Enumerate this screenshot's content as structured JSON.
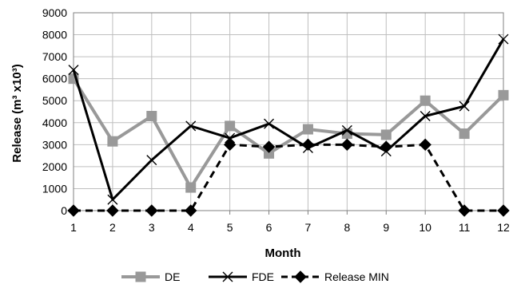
{
  "chart_data": {
    "type": "line",
    "title": "",
    "xlabel": "Month",
    "ylabel": "Release (m³ x10³)",
    "x": [
      1,
      2,
      3,
      4,
      5,
      6,
      7,
      8,
      9,
      10,
      11,
      12
    ],
    "ylim": [
      0,
      9000
    ],
    "yticks": [
      0,
      1000,
      2000,
      3000,
      4000,
      5000,
      6000,
      7000,
      8000,
      9000
    ],
    "grid": true,
    "legend_position": "bottom",
    "series": [
      {
        "name": "DE",
        "color": "#999999",
        "marker": "square",
        "dash": "solid",
        "values": [
          6000,
          3150,
          4300,
          1050,
          3850,
          2600,
          3700,
          3500,
          3450,
          5000,
          3500,
          5250
        ]
      },
      {
        "name": "FDE",
        "color": "#000000",
        "marker": "x",
        "dash": "solid",
        "values": [
          6400,
          500,
          2300,
          3850,
          3300,
          3950,
          2850,
          3650,
          2700,
          4300,
          4750,
          7800
        ]
      },
      {
        "name": "Release MIN",
        "color": "#000000",
        "marker": "diamond",
        "dash": "dashed",
        "values": [
          0,
          0,
          0,
          0,
          3000,
          2900,
          3000,
          3000,
          2900,
          3000,
          0,
          0
        ]
      }
    ]
  }
}
